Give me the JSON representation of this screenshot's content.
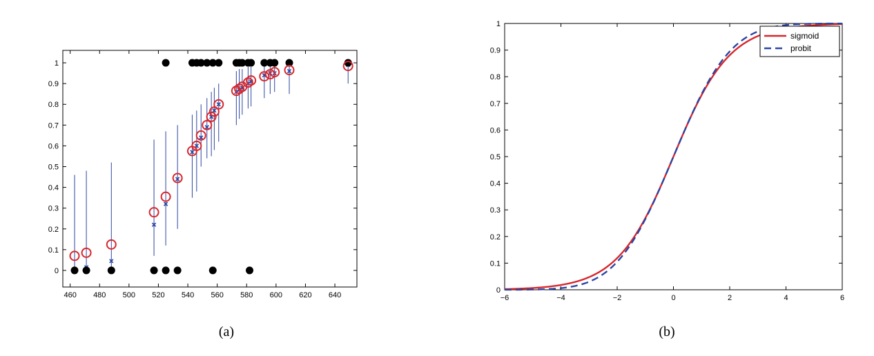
{
  "panels": [
    {
      "caption": "(a)"
    },
    {
      "caption": "(b)"
    }
  ],
  "colors": {
    "red": "#d7262d",
    "blue": "#2b45a0",
    "black": "#000000"
  },
  "chart_data": [
    {
      "type": "scatter",
      "title": "",
      "xlabel": "",
      "ylabel": "",
      "xlim": [
        455,
        655
      ],
      "ylim": [
        -0.08,
        1.06
      ],
      "xticks": [
        460,
        480,
        500,
        520,
        540,
        560,
        580,
        600,
        620,
        640
      ],
      "yticks": [
        0,
        0.1,
        0.2,
        0.3,
        0.4,
        0.5,
        0.6,
        0.7,
        0.8,
        0.9,
        1
      ],
      "grid": false,
      "series": [
        {
          "marker": "black-filled-circle",
          "points": [
            [
              463,
              0
            ],
            [
              471,
              0
            ],
            [
              488,
              0
            ],
            [
              517,
              0
            ],
            [
              525,
              0
            ],
            [
              533,
              0
            ],
            [
              557,
              0
            ],
            [
              582,
              0
            ],
            [
              525,
              1
            ],
            [
              543,
              1
            ],
            [
              546,
              1
            ],
            [
              549,
              1
            ],
            [
              553,
              1
            ],
            [
              557,
              1
            ],
            [
              561,
              1
            ],
            [
              573,
              1
            ],
            [
              575,
              1
            ],
            [
              577,
              1
            ],
            [
              581,
              1
            ],
            [
              583,
              1
            ],
            [
              592,
              1
            ],
            [
              596,
              1
            ],
            [
              599,
              1
            ],
            [
              609,
              1
            ],
            [
              649,
              1
            ]
          ]
        },
        {
          "marker": "red-open-circle",
          "points": [
            [
              463,
              0.07
            ],
            [
              471,
              0.085
            ],
            [
              488,
              0.125
            ],
            [
              517,
              0.28
            ],
            [
              525,
              0.355
            ],
            [
              533,
              0.445
            ],
            [
              543,
              0.575
            ],
            [
              546,
              0.6
            ],
            [
              549,
              0.65
            ],
            [
              553,
              0.7
            ],
            [
              556,
              0.74
            ],
            [
              558,
              0.765
            ],
            [
              561,
              0.8
            ],
            [
              573,
              0.865
            ],
            [
              575,
              0.875
            ],
            [
              577,
              0.885
            ],
            [
              581,
              0.905
            ],
            [
              583,
              0.915
            ],
            [
              592,
              0.935
            ],
            [
              596,
              0.945
            ],
            [
              599,
              0.955
            ],
            [
              609,
              0.965
            ],
            [
              649,
              0.985
            ]
          ]
        },
        {
          "marker": "blue-x-with-errorbar",
          "points": [
            {
              "x": 463,
              "y": 0.005,
              "lo": 0.0,
              "hi": 0.46
            },
            {
              "x": 471,
              "y": 0.015,
              "lo": 0.0,
              "hi": 0.48
            },
            {
              "x": 488,
              "y": 0.045,
              "lo": 0.0,
              "hi": 0.52
            },
            {
              "x": 517,
              "y": 0.22,
              "lo": 0.07,
              "hi": 0.63
            },
            {
              "x": 525,
              "y": 0.32,
              "lo": 0.12,
              "hi": 0.67
            },
            {
              "x": 533,
              "y": 0.44,
              "lo": 0.2,
              "hi": 0.7
            },
            {
              "x": 543,
              "y": 0.57,
              "lo": 0.35,
              "hi": 0.75
            },
            {
              "x": 546,
              "y": 0.6,
              "lo": 0.38,
              "hi": 0.77
            },
            {
              "x": 549,
              "y": 0.64,
              "lo": 0.5,
              "hi": 0.8
            },
            {
              "x": 553,
              "y": 0.69,
              "lo": 0.54,
              "hi": 0.83
            },
            {
              "x": 556,
              "y": 0.74,
              "lo": 0.55,
              "hi": 0.86
            },
            {
              "x": 558,
              "y": 0.77,
              "lo": 0.58,
              "hi": 0.88
            },
            {
              "x": 561,
              "y": 0.8,
              "lo": 0.62,
              "hi": 0.9
            },
            {
              "x": 573,
              "y": 0.86,
              "lo": 0.7,
              "hi": 0.96
            },
            {
              "x": 575,
              "y": 0.87,
              "lo": 0.73,
              "hi": 0.97
            },
            {
              "x": 577,
              "y": 0.88,
              "lo": 0.75,
              "hi": 0.97
            },
            {
              "x": 581,
              "y": 0.9,
              "lo": 0.78,
              "hi": 0.98
            },
            {
              "x": 583,
              "y": 0.91,
              "lo": 0.79,
              "hi": 0.98
            },
            {
              "x": 592,
              "y": 0.94,
              "lo": 0.83,
              "hi": 0.99
            },
            {
              "x": 596,
              "y": 0.95,
              "lo": 0.85,
              "hi": 0.99
            },
            {
              "x": 599,
              "y": 0.95,
              "lo": 0.86,
              "hi": 0.99
            },
            {
              "x": 609,
              "y": 0.96,
              "lo": 0.85,
              "hi": 1.0
            },
            {
              "x": 649,
              "y": 0.99,
              "lo": 0.9,
              "hi": 1.0
            }
          ]
        }
      ]
    },
    {
      "type": "line",
      "title": "",
      "xlabel": "",
      "ylabel": "",
      "xlim": [
        -6,
        6
      ],
      "ylim": [
        0,
        1
      ],
      "xticks": [
        -6,
        -4,
        -2,
        0,
        2,
        4,
        6
      ],
      "xticklabels": [
        "−6",
        "−4",
        "−2",
        "0",
        "2",
        "4",
        "6"
      ],
      "yticks": [
        0,
        0.1,
        0.2,
        0.3,
        0.4,
        0.5,
        0.6,
        0.7,
        0.8,
        0.9,
        1
      ],
      "grid": false,
      "legend_position": "top-right",
      "series": [
        {
          "name": "sigmoid",
          "color": "red",
          "style": "solid",
          "function": "1/(1+exp(-x))"
        },
        {
          "name": "probit",
          "color": "blue",
          "style": "dashed",
          "function": "Phi(sqrt(pi/8)*x)"
        }
      ]
    }
  ]
}
